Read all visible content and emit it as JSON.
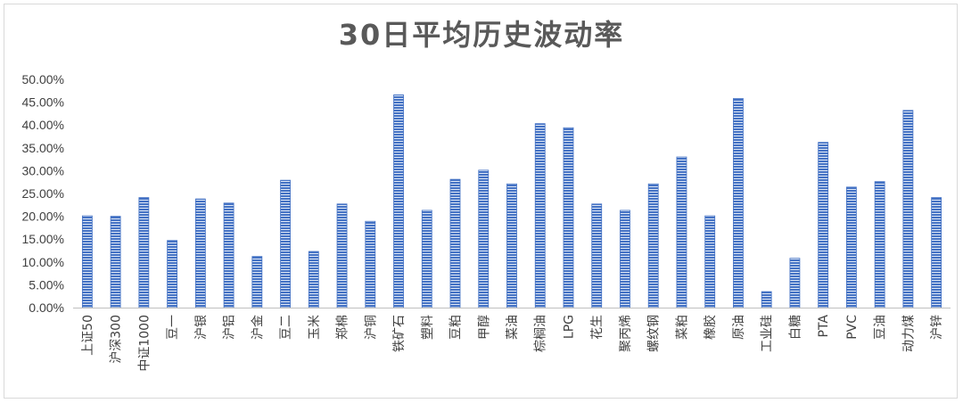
{
  "chart_data": {
    "type": "bar",
    "title": "30日平均历史波动率",
    "xlabel": "",
    "ylabel": "",
    "ylim": [
      0,
      0.5
    ],
    "y_ticks": [
      "0.00%",
      "5.00%",
      "10.00%",
      "15.00%",
      "20.00%",
      "25.00%",
      "30.00%",
      "35.00%",
      "40.00%",
      "45.00%",
      "50.00%"
    ],
    "grid": false,
    "legend": "none",
    "bar_color": "#4472c4",
    "categories": [
      "上证50",
      "沪深300",
      "中证1000",
      "豆一",
      "沪银",
      "沪铝",
      "沪金",
      "豆二",
      "玉米",
      "郑棉",
      "沪铜",
      "铁矿石",
      "塑料",
      "豆粕",
      "甲醇",
      "菜油",
      "棕榈油",
      "LPG",
      "花生",
      "聚丙烯",
      "螺纹钢",
      "菜粕",
      "橡胶",
      "原油",
      "工业硅",
      "白糖",
      "PTA",
      "PVC",
      "豆油",
      "动力煤",
      "沪锌"
    ],
    "values": [
      0.201,
      0.2,
      0.241,
      0.147,
      0.238,
      0.229,
      0.112,
      0.279,
      0.123,
      0.227,
      0.189,
      0.466,
      0.213,
      0.281,
      0.301,
      0.271,
      0.403,
      0.394,
      0.227,
      0.213,
      0.271,
      0.33,
      0.201,
      0.458,
      0.035,
      0.108,
      0.362,
      0.264,
      0.276,
      0.432,
      0.241
    ]
  }
}
